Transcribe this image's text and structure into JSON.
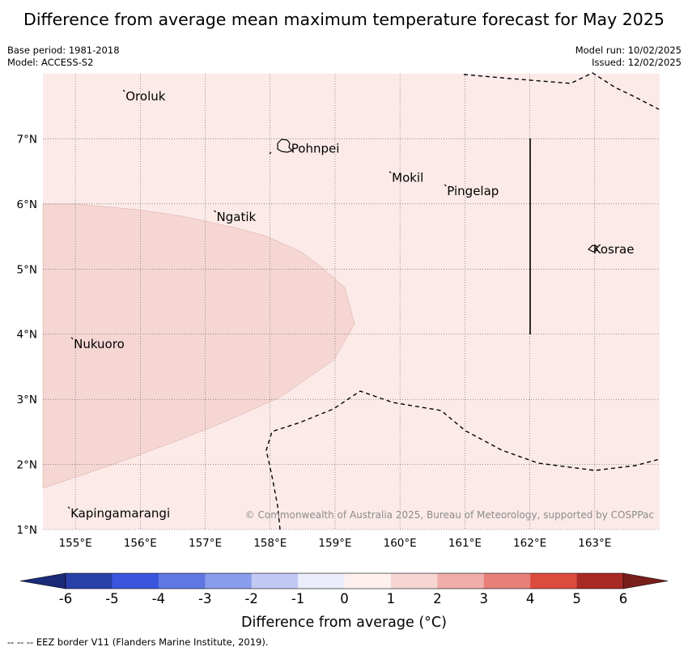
{
  "title": "Difference from average mean maximum temperature forecast for May 2025",
  "base_period": "Base period: 1981-2018",
  "model": "Model: ACCESS-S2",
  "model_run": "Model run: 10/02/2025",
  "issued": "Issued: 12/02/2025",
  "map": {
    "lon_range": [
      154.5,
      164.0
    ],
    "lat_range": [
      1.0,
      8.0
    ],
    "lon_ticks": [
      "155°E",
      "156°E",
      "157°E",
      "158°E",
      "159°E",
      "160°E",
      "161°E",
      "162°E",
      "163°E"
    ],
    "lat_ticks": [
      "1°N",
      "2°N",
      "3°N",
      "4°N",
      "5°N",
      "6°N",
      "7°N"
    ],
    "background_category": "0 to 1",
    "places": [
      {
        "name": "Oroluk",
        "lon": 155.75,
        "lat": 7.65
      },
      {
        "name": "Pohnpei",
        "lon": 158.3,
        "lat": 6.85
      },
      {
        "name": "Mokil",
        "lon": 159.85,
        "lat": 6.4
      },
      {
        "name": "Pingelap",
        "lon": 160.7,
        "lat": 6.2
      },
      {
        "name": "Ngatik",
        "lon": 157.15,
        "lat": 5.8
      },
      {
        "name": "Kosrae",
        "lon": 162.95,
        "lat": 5.3
      },
      {
        "name": "Nukuoro",
        "lon": 154.95,
        "lat": 3.85
      },
      {
        "name": "Kapingamarangi",
        "lon": 154.9,
        "lat": 1.25
      }
    ],
    "credit": "© Commonwealth of Australia 2025, Bureau of Meteorology, supported by COSPPac",
    "colors": {
      "background": "#fbeae8",
      "anomaly_1_2": "#f5d6d3",
      "grid": "#555555"
    }
  },
  "colorbar": {
    "label": "Difference from average (°C)",
    "ticks": [
      "-6",
      "-5",
      "-4",
      "-3",
      "-2",
      "-1",
      "0",
      "1",
      "2",
      "3",
      "4",
      "5",
      "6"
    ],
    "colors": [
      "#2840a8",
      "#3a56de",
      "#5f77e2",
      "#8a9cec",
      "#c2c9f5",
      "#ebedfb",
      "#fdf0ee",
      "#f5d6d3",
      "#efaeaa",
      "#e8807a",
      "#db4b3e",
      "#a82a25"
    ],
    "under_color": "#1a2a78",
    "over_color": "#7a1e1c"
  },
  "footnote": "--  --  -- EEZ border V11 (Flanders Marine Institute, 2019)."
}
